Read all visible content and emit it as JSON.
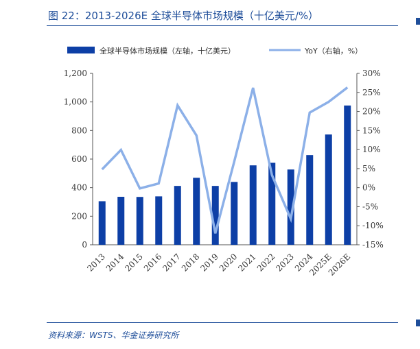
{
  "figure": {
    "title": "图 22：2013-2026E 全球半导体市场规模（十亿美元/%）",
    "source": "资料来源：WSTS、华金证券研究所"
  },
  "chart_data": {
    "type": "bar",
    "categories": [
      "2013",
      "2014",
      "2015",
      "2016",
      "2017",
      "2018",
      "2019",
      "2020",
      "2021",
      "2022",
      "2023",
      "2024",
      "2025E",
      "2026E"
    ],
    "series": [
      {
        "name": "全球半导体市场规模（左轴，十亿美元）",
        "kind": "bar",
        "axis": "left",
        "color": "#0d3fa6",
        "values": [
          305,
          336,
          335,
          339,
          412,
          469,
          412,
          440,
          556,
          574,
          527,
          628,
          772,
          975
        ]
      },
      {
        "name": "YoY（右轴，%）",
        "kind": "line",
        "axis": "right",
        "color": "#8cb0e8",
        "values": [
          4.8,
          9.9,
          -0.2,
          1.1,
          21.6,
          13.7,
          -12.0,
          6.8,
          26.2,
          3.3,
          -8.2,
          19.7,
          22.5,
          26.3
        ]
      }
    ],
    "y_left": {
      "min": 0,
      "max": 1200,
      "ticks": [
        "0",
        "200",
        "400",
        "600",
        "800",
        "1,000",
        "1,200"
      ]
    },
    "y_right": {
      "min": -15,
      "max": 30,
      "ticks": [
        "-15%",
        "-10%",
        "-5%",
        "0%",
        "5%",
        "10%",
        "15%",
        "20%",
        "25%",
        "30%"
      ]
    },
    "legend_placement": "top",
    "grid": false
  }
}
